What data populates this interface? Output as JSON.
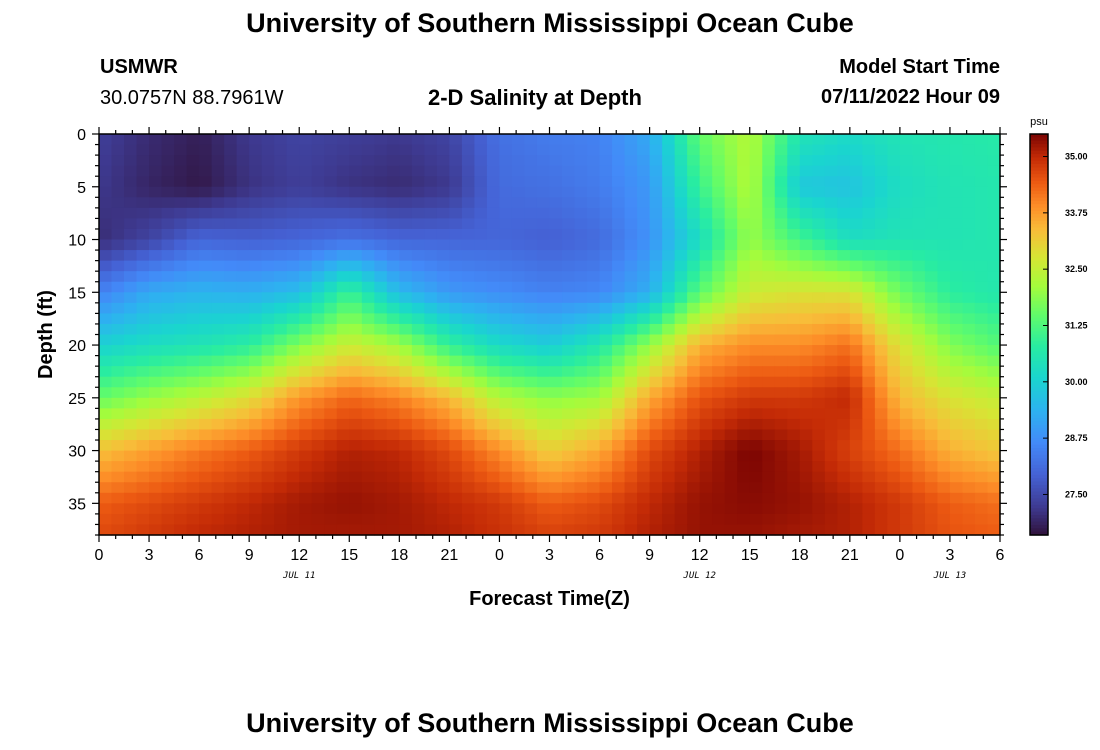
{
  "header": {
    "title": "University of Southern Mississippi Ocean Cube",
    "station": "USMWR",
    "coords": "30.0757N  88.7961W",
    "subtitle": "2-D Salinity at Depth",
    "model_label": "Model Start Time",
    "model_time": "07/11/2022 Hour 09"
  },
  "footer": {
    "title": "University of Southern Mississippi Ocean Cube"
  },
  "chart_data": {
    "type": "heatmap",
    "title": "2-D Salinity at Depth",
    "xlabel": "Forecast Time(Z)",
    "ylabel": "Depth (ft)",
    "x_tick_labels": [
      "0",
      "3",
      "6",
      "9",
      "12",
      "15",
      "18",
      "21",
      "0",
      "3",
      "6",
      "9",
      "12",
      "15",
      "18",
      "21",
      "0",
      "3",
      "6"
    ],
    "x_range_hours": [
      0,
      54
    ],
    "date_labels": [
      {
        "label": "JUL 11",
        "hour": 12
      },
      {
        "label": "JUL 12",
        "hour": 36
      },
      {
        "label": "JUL 13",
        "hour": 51
      }
    ],
    "y_tick_labels": [
      "0",
      "5",
      "10",
      "15",
      "20",
      "25",
      "30",
      "35"
    ],
    "y_range_ft": [
      0,
      38
    ],
    "y_reversed": true,
    "colorbar": {
      "unit": "psu",
      "range": [
        26.6,
        35.5
      ],
      "tick_labels": [
        "35.00",
        "33.75",
        "32.50",
        "31.25",
        "30.00",
        "28.75",
        "27.50"
      ],
      "colormap": "turbo"
    },
    "depths_ft": [
      0,
      5,
      10,
      15,
      20,
      25,
      30,
      35,
      38
    ],
    "hours": [
      0,
      3,
      6,
      9,
      12,
      15,
      18,
      21,
      24,
      27,
      30,
      33,
      36,
      39,
      42,
      45,
      48,
      51,
      54
    ],
    "values": [
      [
        27.3,
        27.0,
        26.8,
        27.2,
        27.4,
        27.3,
        27.2,
        27.4,
        28.2,
        28.4,
        28.5,
        29.2,
        31.5,
        32.3,
        30.5,
        30.2,
        30.5,
        30.6,
        30.7
      ],
      [
        27.2,
        26.9,
        26.7,
        27.1,
        27.3,
        27.1,
        27.0,
        27.2,
        28.1,
        28.2,
        28.4,
        28.9,
        31.0,
        32.3,
        29.8,
        29.7,
        30.3,
        30.5,
        30.6
      ],
      [
        27.0,
        27.4,
        28.0,
        27.9,
        28.0,
        28.2,
        28.0,
        28.0,
        28.0,
        27.9,
        28.1,
        28.8,
        30.3,
        32.0,
        31.1,
        30.3,
        30.5,
        30.5,
        30.6
      ],
      [
        28.5,
        29.2,
        29.4,
        29.3,
        29.6,
        31.0,
        29.5,
        28.9,
        28.7,
        28.5,
        28.6,
        29.3,
        31.4,
        32.6,
        32.8,
        32.8,
        31.6,
        30.8,
        30.6
      ],
      [
        30.0,
        30.3,
        30.5,
        30.8,
        31.8,
        32.6,
        32.1,
        30.9,
        30.2,
        29.9,
        30.6,
        32.0,
        33.5,
        33.9,
        33.9,
        34.2,
        32.8,
        31.8,
        31.3
      ],
      [
        31.5,
        32.0,
        32.4,
        32.9,
        33.8,
        34.3,
        34.0,
        33.4,
        32.3,
        31.9,
        32.1,
        33.6,
        34.5,
        34.8,
        34.8,
        35.0,
        33.4,
        32.8,
        32.5
      ],
      [
        33.3,
        33.7,
        34.1,
        34.4,
        34.8,
        35.1,
        35.0,
        34.6,
        33.9,
        33.1,
        33.6,
        34.6,
        35.1,
        35.5,
        35.2,
        34.7,
        34.2,
        33.5,
        33.2
      ],
      [
        34.4,
        34.6,
        34.8,
        35.0,
        35.2,
        35.3,
        35.2,
        35.0,
        34.8,
        34.4,
        34.6,
        35.0,
        35.3,
        35.4,
        35.3,
        35.1,
        34.8,
        34.4,
        34.2
      ],
      [
        34.6,
        34.8,
        35.0,
        35.1,
        35.2,
        35.2,
        35.2,
        35.1,
        34.9,
        34.7,
        34.8,
        35.1,
        35.3,
        35.3,
        35.2,
        35.1,
        34.8,
        34.5,
        34.4
      ]
    ]
  }
}
